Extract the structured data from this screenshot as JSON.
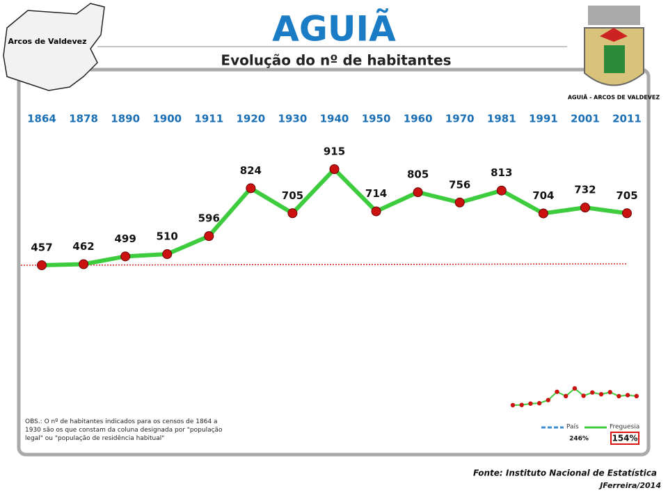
{
  "chart_data": {
    "type": "line",
    "title": "AGUIÃ",
    "subtitle": "Evolução do nº de habitantes",
    "categories": [
      "1864",
      "1878",
      "1890",
      "1900",
      "1911",
      "1920",
      "1930",
      "1940",
      "1950",
      "1960",
      "1970",
      "1981",
      "1991",
      "2001",
      "2011"
    ],
    "series": [
      {
        "name": "Freguesia",
        "color": "#3dcc3d",
        "marker_color": "#cc1111",
        "values": [
          457,
          462,
          499,
          510,
          596,
          824,
          705,
          915,
          714,
          805,
          756,
          813,
          704,
          732,
          705
        ]
      }
    ],
    "inset": {
      "series": [
        {
          "name": "País",
          "color": "#3a8fd6",
          "label": "246%"
        },
        {
          "name": "Freguesia",
          "color": "#3dcc3d",
          "label": "154%"
        }
      ]
    },
    "note": "OBS.: O nº de habitantes indicados para os censos de 1864 a 1930 são os que constam da coluna designada por \"população legal\" ou \"população de residência habitual\"",
    "source": "Fonte: Instituto Nacional de Estatística",
    "author": "JFerreira/2014",
    "map_label": "Arcos de Valdevez",
    "crest_label": "AGUIÃ - ARCOS DE VALDEVEZ"
  }
}
